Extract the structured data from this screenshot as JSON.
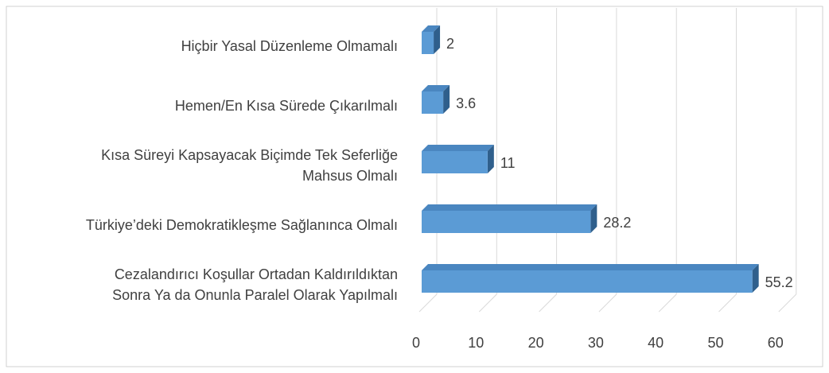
{
  "chart_data": {
    "type": "bar3d_horizontal",
    "categories": [
      "Hiçbir Yasal Düzenleme Olmamalı",
      "Hemen/En Kısa Sürede Çıkarılmalı",
      "Kısa Süreyi Kapsayacak Biçimde Tek Seferliğe\nMahsus Olmalı",
      "Türkiye’deki Demokratikleşme Sağlanınca Olmalı",
      "Cezalandırıcı Koşullar Ortadan Kaldırıldıktan\nSonra Ya da Onunla Paralel Olarak Yapılmalı"
    ],
    "values": [
      2,
      3.6,
      11,
      28.2,
      55.2
    ],
    "color": "#5b9bd5",
    "xlim": [
      0,
      60
    ],
    "xticks": [
      0,
      10,
      20,
      30,
      40,
      50,
      60
    ],
    "grid": true
  }
}
